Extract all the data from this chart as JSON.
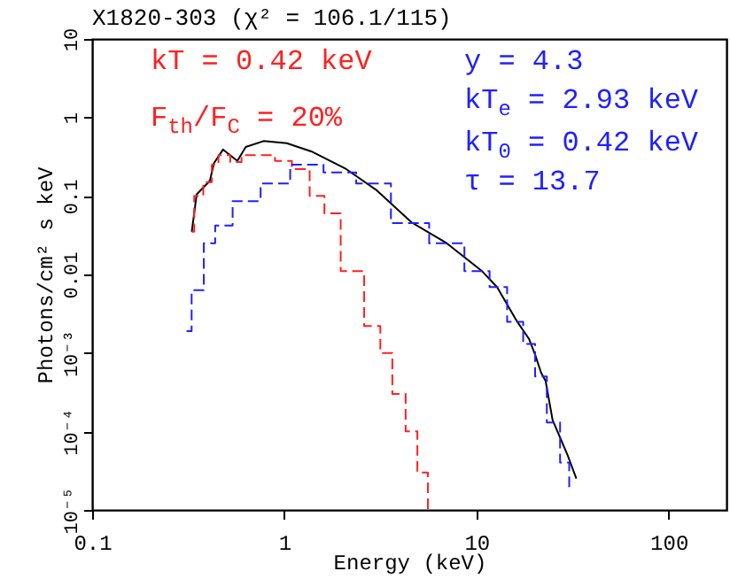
{
  "chart_data": {
    "type": "line",
    "title": "X1820-303 (χ² = 106.1/115)",
    "xlabel": "Energy (keV)",
    "ylabel": "Photons/cm² s keV",
    "annotations": [
      "kT = 0.42 keV",
      "F$_{th}$/F$_{C}$ = 20%",
      "y = 4.3",
      "kT$_{e}$ = 2.93 keV",
      "kT$_{0}$ = 0.42 keV",
      "τ = 13.7"
    ],
    "log": "xy",
    "grid": false,
    "legend": false,
    "marker": "none",
    "xlim": [
      0.1,
      200
    ],
    "xticks": [
      0.1,
      1,
      10,
      100
    ],
    "ylim": [
      1e-05,
      10
    ],
    "yticks": [
      {
        "value": 1e-05,
        "label": "10⁻⁵"
      },
      {
        "value": 0.0001,
        "label": "10⁻⁴"
      },
      {
        "value": 0.001,
        "label": "10⁻³"
      },
      0.01,
      0.1,
      1,
      10
    ],
    "series": [
      {
        "type": "line",
        "line_style": "solid",
        "color": "#000000",
        "x": [
          0.33,
          0.35,
          0.41,
          0.43,
          0.48,
          0.57,
          0.63,
          0.78,
          1.03,
          1.38,
          2.1,
          3.0,
          4.6,
          7.0,
          10.7,
          12.8,
          16.3,
          18.8,
          20.2,
          21.7,
          22.9,
          24.9,
          29.8,
          33.1
        ],
        "values": [
          0.035,
          0.105,
          0.156,
          0.26,
          0.39,
          0.28,
          0.42,
          0.5,
          0.47,
          0.37,
          0.22,
          0.12,
          0.046,
          0.025,
          0.011,
          0.0069,
          0.0025,
          0.0015,
          0.00095,
          0.00056,
          0.00044,
          0.00014,
          5e-05,
          2.5e-05
        ]
      },
      {
        "type": "step",
        "line_style": "dashed",
        "color": "#ff2020",
        "x": [
          0.33,
          0.35,
          0.41,
          0.43,
          0.48,
          0.57,
          0.63,
          0.8,
          1.0,
          1.2,
          1.53,
          1.71,
          2.26,
          3.0,
          3.33,
          4.0,
          4.58,
          5.3,
          5.9
        ],
        "values": [
          0.035,
          0.1,
          0.15,
          0.25,
          0.33,
          0.27,
          0.33,
          0.33,
          0.28,
          0.22,
          0.1,
          0.06,
          0.011,
          0.0022,
          0.001,
          0.0003,
          0.0001,
          3e-05,
          1e-05
        ]
      },
      {
        "type": "step",
        "line_style": "dashed",
        "color": "#2020ff",
        "x": [
          0.31,
          0.35,
          0.415,
          0.46,
          0.63,
          0.9,
          1.28,
          2.0,
          2.8,
          4.6,
          7.0,
          10.7,
          12.8,
          16.3,
          18.8,
          21.7,
          24.9,
          29.8,
          31
        ],
        "values": [
          0.0019,
          0.0063,
          0.025,
          0.042,
          0.086,
          0.144,
          0.25,
          0.2,
          0.144,
          0.045,
          0.025,
          0.011,
          0.0069,
          0.0025,
          0.0013,
          0.0005,
          0.00013,
          4e-05,
          1.8e-05
        ]
      }
    ]
  }
}
